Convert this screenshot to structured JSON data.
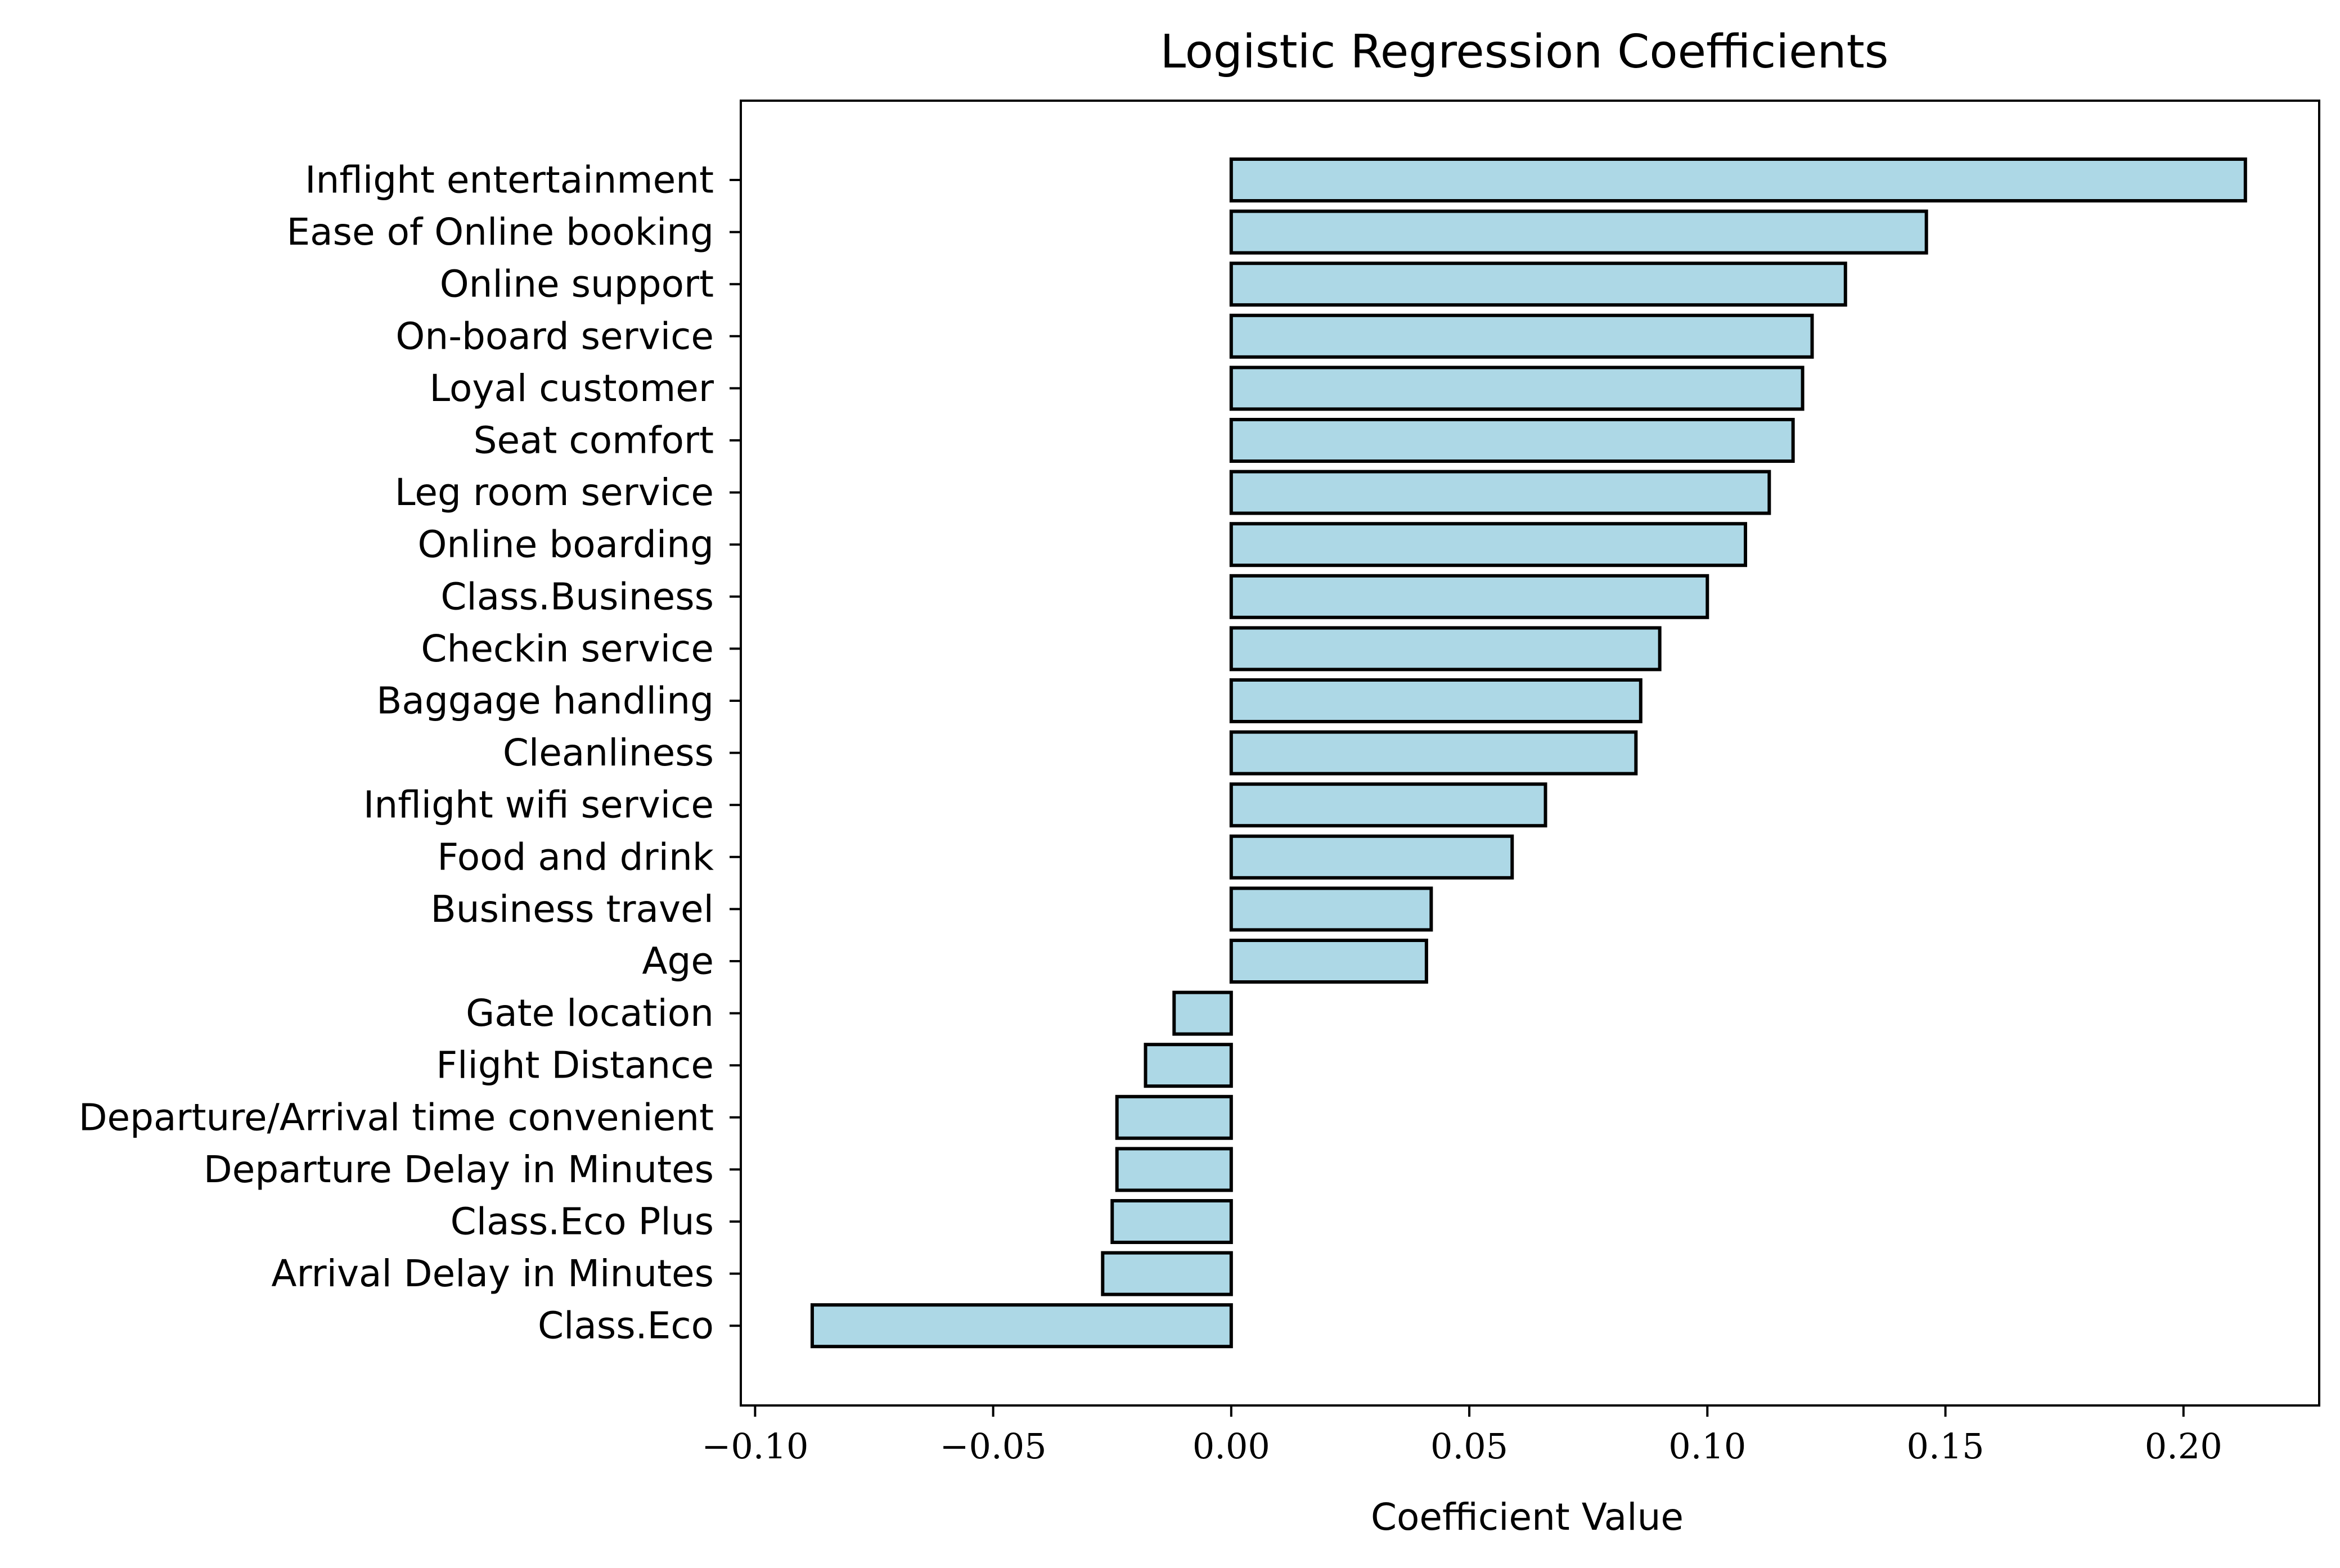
{
  "chart_data": {
    "type": "bar",
    "orientation": "horizontal",
    "title": "Logistic Regression Coefficients",
    "xlabel": "Coefficient Value",
    "ylabel": "",
    "xlim": [
      -0.103,
      0.2285
    ],
    "x_ticks": [
      -0.1,
      -0.05,
      0.0,
      0.05,
      0.1,
      0.15,
      0.2
    ],
    "x_tick_labels": [
      "−0.10",
      "−0.05",
      "0.00",
      "0.05",
      "0.10",
      "0.15",
      "0.20"
    ],
    "grid": false,
    "legend": "none",
    "bar_color": "#add8e6",
    "edge_color": "#000000",
    "categories": [
      "Inflight entertainment",
      "Ease of Online booking",
      "Online support",
      "On-board service",
      "Loyal customer",
      "Seat comfort",
      "Leg room service",
      "Online boarding",
      "Class_Business",
      "Checkin service",
      "Baggage handling",
      "Cleanliness",
      "Inflight wifi service",
      "Food and drink",
      "Business travel",
      "Age",
      "Gate location",
      "Flight Distance",
      "Departure/Arrival time convenient",
      "Departure Delay in Minutes",
      "Class_Eco Plus",
      "Arrival Delay in Minutes",
      "Class_Eco"
    ],
    "category_display": [
      "Inflight entertainment",
      "Ease of Online booking",
      "Online support",
      "On-board service",
      "Loyal customer",
      "Seat comfort",
      "Leg room service",
      "Online boarding",
      "Class.Business",
      "Checkin service",
      "Baggage handling",
      "Cleanliness",
      "Inflight wifi service",
      "Food and drink",
      "Business travel",
      "Age",
      "Gate location",
      "Flight Distance",
      "Departure/Arrival time convenient",
      "Departure Delay in Minutes",
      "Class.Eco Plus",
      "Arrival Delay in Minutes",
      "Class.Eco"
    ],
    "values": [
      0.213,
      0.146,
      0.129,
      0.122,
      0.12,
      0.118,
      0.113,
      0.108,
      0.1,
      0.09,
      0.086,
      0.085,
      0.066,
      0.059,
      0.042,
      0.041,
      -0.012,
      -0.018,
      -0.024,
      -0.024,
      -0.025,
      -0.027,
      -0.088
    ]
  }
}
